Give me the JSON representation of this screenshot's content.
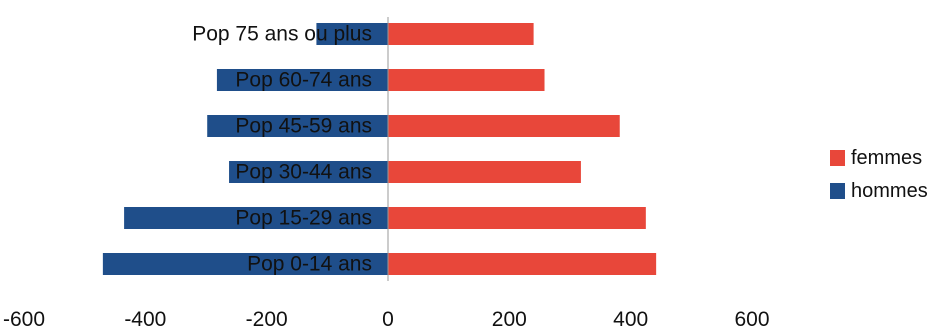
{
  "chart_data": {
    "type": "bar",
    "orientation": "horizontal",
    "stacked": true,
    "categories": [
      "Pop 0-14 ans",
      "Pop 15-29 ans",
      "Pop 30-44 ans",
      "Pop 45-59 ans",
      "Pop 60-74 ans",
      "Pop 75 ans ou plus"
    ],
    "series": [
      {
        "name": "femmes",
        "color": "#E8473A",
        "values": [
          442,
          425,
          318,
          382,
          258,
          240
        ]
      },
      {
        "name": "hommes",
        "color": "#1F4E8A",
        "values": [
          -470,
          -435,
          -262,
          -298,
          -282,
          -118
        ]
      }
    ],
    "xlim": [
      -600,
      600
    ],
    "xticks": [
      -600,
      -400,
      -200,
      0,
      200,
      400,
      600
    ],
    "xtick_labels": [
      "-600",
      "-400",
      "-200",
      "0",
      "200",
      "400",
      "600"
    ],
    "legend_position": "right",
    "grid": false
  }
}
